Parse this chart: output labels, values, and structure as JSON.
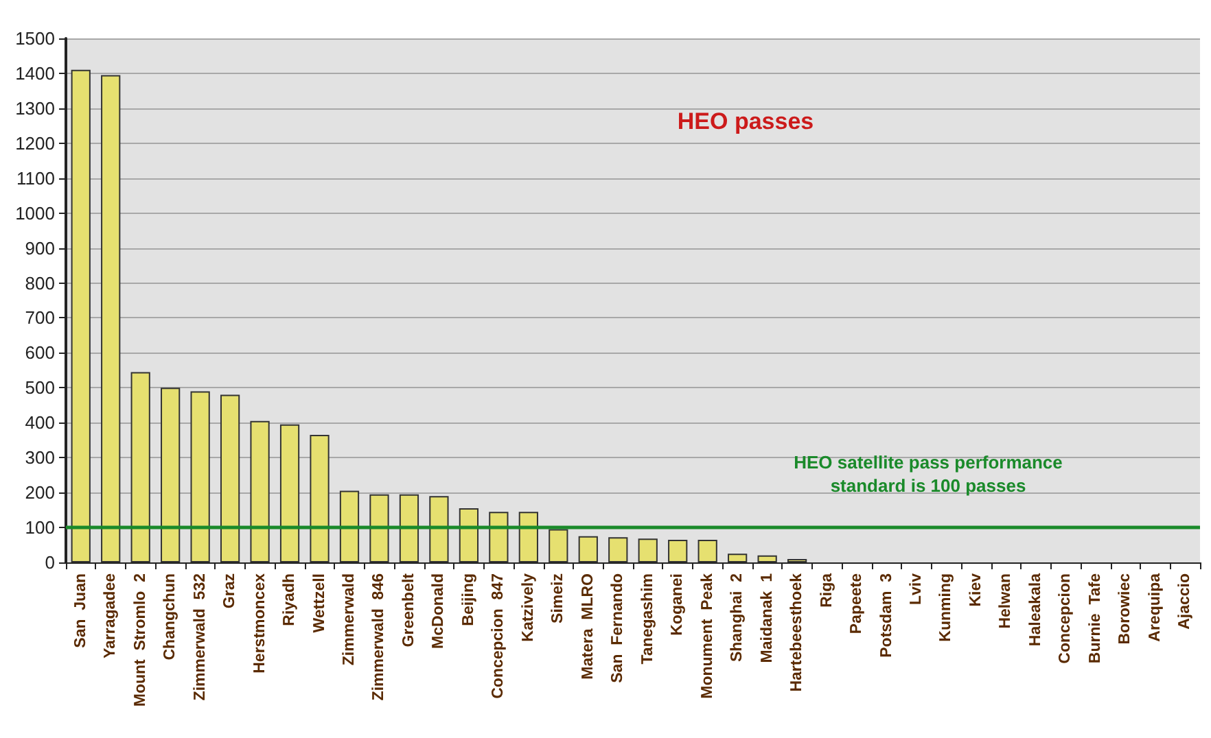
{
  "chart_data": {
    "type": "bar",
    "title": "HEO passes",
    "categories": [
      "San  Juan",
      "Yarragadee",
      "Mount  Stromlo  2",
      "Changchun",
      "Zimmerwald  532",
      "Graz",
      "Herstmoncex",
      "Riyadh",
      "Wettzell",
      "Zimmerwald",
      "Zimmerwald  846",
      "Greenbelt",
      "McDonald",
      "Beijing",
      "Concepcion  847",
      "Katzively",
      "Simeiz",
      "Matera  MLRO",
      "San  Fernando",
      "Tanegashim",
      "Koganei",
      "Monument  Peak",
      "Shanghai  2",
      "Maidanak  1",
      "Hartebeesthoek",
      "Riga",
      "Papeete",
      "Potsdam  3",
      "Lviv",
      "Kunming",
      "Kiev",
      "Helwan",
      "Haleakala",
      "Concepcion",
      "Burnie  Tafe",
      "Borowiec",
      "Arequipa",
      "Ajaccio"
    ],
    "values": [
      1410,
      1395,
      545,
      500,
      490,
      480,
      405,
      395,
      365,
      205,
      195,
      195,
      190,
      155,
      145,
      145,
      95,
      75,
      72,
      68,
      65,
      65,
      25,
      20,
      10,
      0,
      0,
      0,
      0,
      0,
      0,
      0,
      0,
      0,
      0,
      0,
      0,
      0
    ],
    "color": "#e6e070",
    "ylim": [
      0,
      1500
    ],
    "yticks": [
      0,
      100,
      200,
      300,
      400,
      500,
      600,
      700,
      800,
      900,
      1000,
      1100,
      1200,
      1300,
      1400,
      1500
    ],
    "grid": "y",
    "ref_lines": [
      {
        "axis": "y",
        "value": 100,
        "label": "HEO satellite pass performance\nstandard is 100 passes",
        "color": "#1a8a2a"
      }
    ]
  }
}
